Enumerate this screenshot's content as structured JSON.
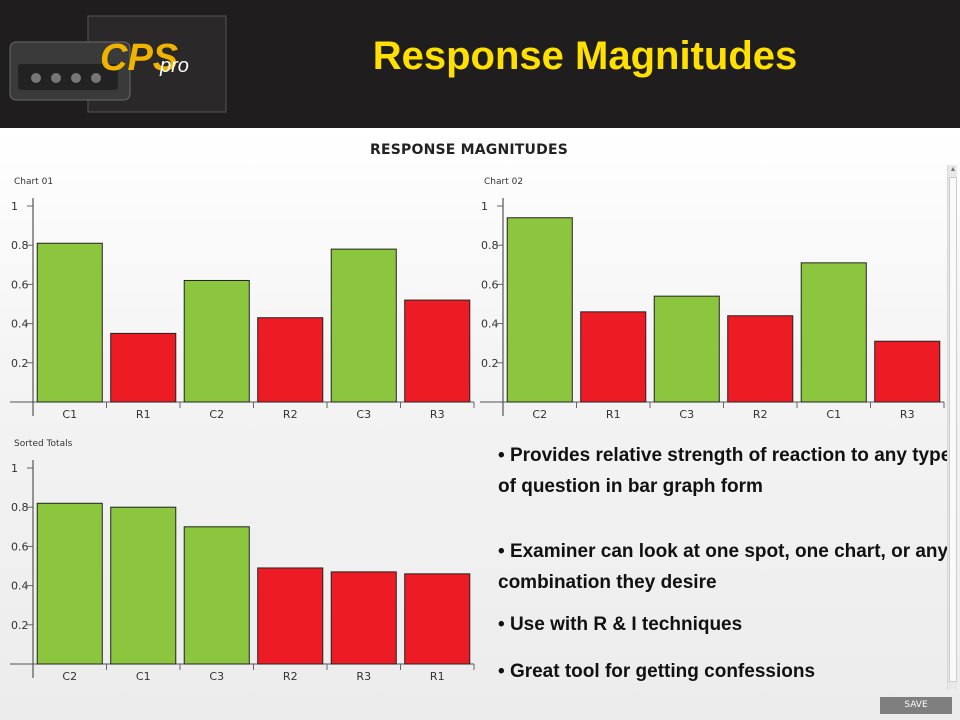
{
  "slide": {
    "title": "Response Magnitudes",
    "logo_brand": "CPS",
    "logo_suffix": "pro"
  },
  "panel": {
    "heading": "RESPONSE MAGNITUDES",
    "save_label": "SAVE"
  },
  "bullets": [
    "Provides relative strength of reaction to any type of question in bar graph form",
    "Examiner can look at one spot, one chart, or any combination they desire",
    "Use with R & I  techniques",
    "Great tool for getting confessions"
  ],
  "colors": {
    "header_bg": "#1f1d1d",
    "title": "#ffe000",
    "bar_green": "#8cc63f",
    "bar_red": "#ed1c24"
  },
  "chart_data": [
    {
      "type": "bar",
      "title": "Chart 01",
      "categories": [
        "C1",
        "R1",
        "C2",
        "R2",
        "C3",
        "R3"
      ],
      "values": [
        0.81,
        0.35,
        0.62,
        0.43,
        0.78,
        0.52
      ],
      "bar_colors": [
        "green",
        "red",
        "green",
        "red",
        "green",
        "red"
      ],
      "yticks": [
        "1",
        "0.8",
        "0.6",
        "0.4",
        "0.2"
      ],
      "ylim": [
        0,
        1
      ]
    },
    {
      "type": "bar",
      "title": "Chart 02",
      "categories": [
        "C2",
        "R1",
        "C3",
        "R2",
        "C1",
        "R3"
      ],
      "values": [
        0.94,
        0.46,
        0.54,
        0.44,
        0.71,
        0.31
      ],
      "bar_colors": [
        "green",
        "red",
        "green",
        "red",
        "green",
        "red"
      ],
      "yticks": [
        "1",
        "0.8",
        "0.6",
        "0.4",
        "0.2"
      ],
      "ylim": [
        0,
        1
      ]
    },
    {
      "type": "bar",
      "title": "Sorted Totals",
      "categories": [
        "C2",
        "C1",
        "C3",
        "R2",
        "R3",
        "R1"
      ],
      "values": [
        0.82,
        0.8,
        0.7,
        0.49,
        0.47,
        0.46
      ],
      "bar_colors": [
        "green",
        "green",
        "green",
        "red",
        "red",
        "red"
      ],
      "yticks": [
        "1",
        "0.8",
        "0.6",
        "0.4",
        "0.2"
      ],
      "ylim": [
        0,
        1
      ]
    }
  ]
}
